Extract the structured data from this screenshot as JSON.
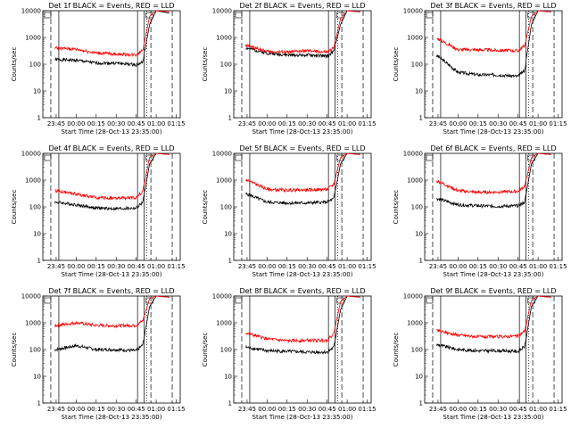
{
  "figure": {
    "x_label": "Start Time (28-Oct-13 23:35:00)",
    "y_label": "Counts/sec",
    "x_tick_labels": [
      "23:45",
      "00:00",
      "00:15",
      "00:30",
      "00:45",
      "01:00",
      "01:15"
    ],
    "y_tick_labels": [
      "1",
      "10",
      "100",
      "1000",
      "10000"
    ],
    "colors": {
      "events": "#000000",
      "lld": "#ff0000",
      "axes": "#000000",
      "background": "#ffffff"
    }
  },
  "chart_data": [
    {
      "type": "line",
      "title": "Det 1f BLACK = Events, RED = LLD",
      "ylabel": "Counts/sec",
      "xlabel": "Start Time (28-Oct-13 23:35:00)",
      "y_scale": "log",
      "ylim": [
        1,
        10000
      ],
      "x_tick_labels": [
        "23:45",
        "00:00",
        "00:15",
        "00:30",
        "00:45",
        "01:00",
        "01:15"
      ],
      "series": [
        {
          "name": "Events",
          "x": [
            "23:45",
            "00:00",
            "00:15",
            "00:30",
            "00:45",
            "00:50",
            "00:55",
            "01:00",
            "01:10"
          ],
          "y": [
            150,
            140,
            110,
            110,
            95,
            120,
            3000,
            10000,
            8000
          ]
        },
        {
          "name": "LLD",
          "x": [
            "23:45",
            "00:00",
            "00:15",
            "00:30",
            "00:45",
            "00:50",
            "00:55",
            "01:00",
            "01:10"
          ],
          "y": [
            400,
            360,
            260,
            240,
            220,
            350,
            6000,
            10000,
            9000
          ]
        }
      ]
    },
    {
      "type": "line",
      "title": "Det 2f BLACK = Events, RED = LLD",
      "ylabel": "Counts/sec",
      "xlabel": "Start Time (28-Oct-13 23:35:00)",
      "y_scale": "log",
      "ylim": [
        1,
        10000
      ],
      "x_tick_labels": [
        "23:45",
        "00:00",
        "00:15",
        "00:30",
        "00:45",
        "01:00",
        "01:15"
      ],
      "series": [
        {
          "name": "Events",
          "x": [
            "23:45",
            "00:00",
            "00:15",
            "00:30",
            "00:45",
            "00:50",
            "00:55",
            "01:00",
            "01:10"
          ],
          "y": [
            400,
            260,
            220,
            220,
            200,
            300,
            3000,
            10000,
            9000
          ]
        },
        {
          "name": "LLD",
          "x": [
            "23:45",
            "00:00",
            "00:15",
            "00:30",
            "00:45",
            "00:50",
            "00:55",
            "01:00",
            "01:10"
          ],
          "y": [
            500,
            300,
            280,
            320,
            280,
            400,
            5000,
            10000,
            9000
          ]
        }
      ]
    },
    {
      "type": "line",
      "title": "Det 3f BLACK = Events, RED = LLD",
      "ylabel": "Counts/sec",
      "xlabel": "Start Time (28-Oct-13 23:35:00)",
      "y_scale": "log",
      "ylim": [
        1,
        10000
      ],
      "x_tick_labels": [
        "23:45",
        "00:00",
        "00:15",
        "00:30",
        "00:45",
        "01:00",
        "01:15"
      ],
      "series": [
        {
          "name": "Events",
          "x": [
            "23:45",
            "00:00",
            "00:15",
            "00:30",
            "00:45",
            "00:50",
            "00:55",
            "01:00",
            "01:10"
          ],
          "y": [
            200,
            50,
            40,
            40,
            35,
            60,
            3000,
            10000,
            9000
          ]
        },
        {
          "name": "LLD",
          "x": [
            "23:45",
            "00:00",
            "00:15",
            "00:30",
            "00:45",
            "00:50",
            "00:55",
            "01:00",
            "01:10"
          ],
          "y": [
            900,
            350,
            350,
            330,
            320,
            500,
            6000,
            10000,
            9000
          ]
        }
      ]
    },
    {
      "type": "line",
      "title": "Det 4f BLACK = Events, RED = LLD",
      "ylabel": "Counts/sec",
      "xlabel": "Start Time (28-Oct-13 23:35:00)",
      "y_scale": "log",
      "ylim": [
        1,
        10000
      ],
      "x_tick_labels": [
        "23:45",
        "00:00",
        "00:15",
        "00:30",
        "00:45",
        "01:00",
        "01:15"
      ],
      "series": [
        {
          "name": "Events",
          "x": [
            "23:45",
            "00:00",
            "00:15",
            "00:30",
            "00:45",
            "00:50",
            "00:55",
            "01:00",
            "01:10"
          ],
          "y": [
            150,
            120,
            90,
            85,
            90,
            150,
            4000,
            10000,
            9000
          ]
        },
        {
          "name": "LLD",
          "x": [
            "23:45",
            "00:00",
            "00:15",
            "00:30",
            "00:45",
            "00:50",
            "00:55",
            "01:00",
            "01:10"
          ],
          "y": [
            400,
            300,
            220,
            210,
            220,
            400,
            7000,
            10000,
            9000
          ]
        }
      ]
    },
    {
      "type": "line",
      "title": "Det 5f BLACK = Events, RED = LLD",
      "ylabel": "Counts/sec",
      "xlabel": "Start Time (28-Oct-13 23:35:00)",
      "y_scale": "log",
      "ylim": [
        1,
        10000
      ],
      "x_tick_labels": [
        "23:45",
        "00:00",
        "00:15",
        "00:30",
        "00:45",
        "01:00",
        "01:15"
      ],
      "series": [
        {
          "name": "Events",
          "x": [
            "23:45",
            "00:00",
            "00:15",
            "00:30",
            "00:45",
            "00:50",
            "00:55",
            "01:00",
            "01:10"
          ],
          "y": [
            300,
            150,
            140,
            140,
            150,
            200,
            4000,
            10000,
            9000
          ]
        },
        {
          "name": "LLD",
          "x": [
            "23:45",
            "00:00",
            "00:15",
            "00:30",
            "00:45",
            "00:50",
            "00:55",
            "01:00",
            "01:10"
          ],
          "y": [
            1000,
            450,
            420,
            430,
            450,
            700,
            7000,
            10000,
            9000
          ]
        }
      ]
    },
    {
      "type": "line",
      "title": "Det 6f BLACK = Events, RED = LLD",
      "ylabel": "Counts/sec",
      "xlabel": "Start Time (28-Oct-13 23:35:00)",
      "y_scale": "log",
      "ylim": [
        1,
        10000
      ],
      "x_tick_labels": [
        "23:45",
        "00:00",
        "00:15",
        "00:30",
        "00:45",
        "01:00",
        "01:15"
      ],
      "series": [
        {
          "name": "Events",
          "x": [
            "23:45",
            "00:00",
            "00:15",
            "00:30",
            "00:45",
            "00:50",
            "00:55",
            "01:00",
            "01:10"
          ],
          "y": [
            200,
            120,
            110,
            105,
            110,
            150,
            4000,
            10000,
            9000
          ]
        },
        {
          "name": "LLD",
          "x": [
            "23:45",
            "00:00",
            "00:15",
            "00:30",
            "00:45",
            "00:50",
            "00:55",
            "01:00",
            "01:10"
          ],
          "y": [
            900,
            400,
            350,
            360,
            380,
            600,
            7000,
            10000,
            9000
          ]
        }
      ]
    },
    {
      "type": "line",
      "title": "Det 7f BLACK = Events, RED = LLD",
      "ylabel": "Counts/sec",
      "xlabel": "Start Time (28-Oct-13 23:35:00)",
      "y_scale": "log",
      "ylim": [
        1,
        10000
      ],
      "x_tick_labels": [
        "23:45",
        "00:00",
        "00:15",
        "00:30",
        "00:45",
        "01:00",
        "01:15"
      ],
      "series": [
        {
          "name": "Events",
          "x": [
            "23:45",
            "00:00",
            "00:15",
            "00:30",
            "00:45",
            "00:50",
            "00:55",
            "01:00",
            "01:10"
          ],
          "y": [
            100,
            140,
            100,
            100,
            90,
            150,
            4000,
            10000,
            9000
          ]
        },
        {
          "name": "LLD",
          "x": [
            "23:45",
            "00:00",
            "00:15",
            "00:30",
            "00:45",
            "00:50",
            "00:55",
            "01:00",
            "01:10"
          ],
          "y": [
            800,
            1000,
            800,
            780,
            800,
            1200,
            8000,
            10000,
            9000
          ]
        }
      ]
    },
    {
      "type": "line",
      "title": "Det 8f BLACK = Events, RED = LLD",
      "ylabel": "Counts/sec",
      "xlabel": "Start Time (28-Oct-13 23:35:00)",
      "y_scale": "log",
      "ylim": [
        1,
        10000
      ],
      "x_tick_labels": [
        "23:45",
        "00:00",
        "00:15",
        "00:30",
        "00:45",
        "01:00",
        "01:15"
      ],
      "series": [
        {
          "name": "Events",
          "x": [
            "23:45",
            "00:00",
            "00:15",
            "00:30",
            "00:45",
            "00:50",
            "00:55",
            "01:00",
            "01:10"
          ],
          "y": [
            120,
            90,
            85,
            80,
            80,
            120,
            3000,
            10000,
            9000
          ]
        },
        {
          "name": "LLD",
          "x": [
            "23:45",
            "00:00",
            "00:15",
            "00:30",
            "00:45",
            "00:50",
            "00:55",
            "01:00",
            "01:10"
          ],
          "y": [
            400,
            250,
            210,
            220,
            220,
            400,
            6000,
            10000,
            9000
          ]
        }
      ]
    },
    {
      "type": "line",
      "title": "Det 9f BLACK = Events, RED = LLD",
      "ylabel": "Counts/sec",
      "xlabel": "Start Time (28-Oct-13 23:35:00)",
      "y_scale": "log",
      "ylim": [
        1,
        10000
      ],
      "x_tick_labels": [
        "23:45",
        "00:00",
        "00:15",
        "00:30",
        "00:45",
        "01:00",
        "01:15"
      ],
      "series": [
        {
          "name": "Events",
          "x": [
            "23:45",
            "00:00",
            "00:15",
            "00:30",
            "00:45",
            "00:50",
            "00:55",
            "01:00",
            "01:10"
          ],
          "y": [
            150,
            100,
            90,
            90,
            85,
            130,
            4000,
            10000,
            9000
          ]
        },
        {
          "name": "LLD",
          "x": [
            "23:45",
            "00:00",
            "00:15",
            "00:30",
            "00:45",
            "00:50",
            "00:55",
            "01:00",
            "01:10"
          ],
          "y": [
            500,
            350,
            300,
            300,
            320,
            500,
            7000,
            10000,
            9000
          ]
        }
      ]
    }
  ]
}
